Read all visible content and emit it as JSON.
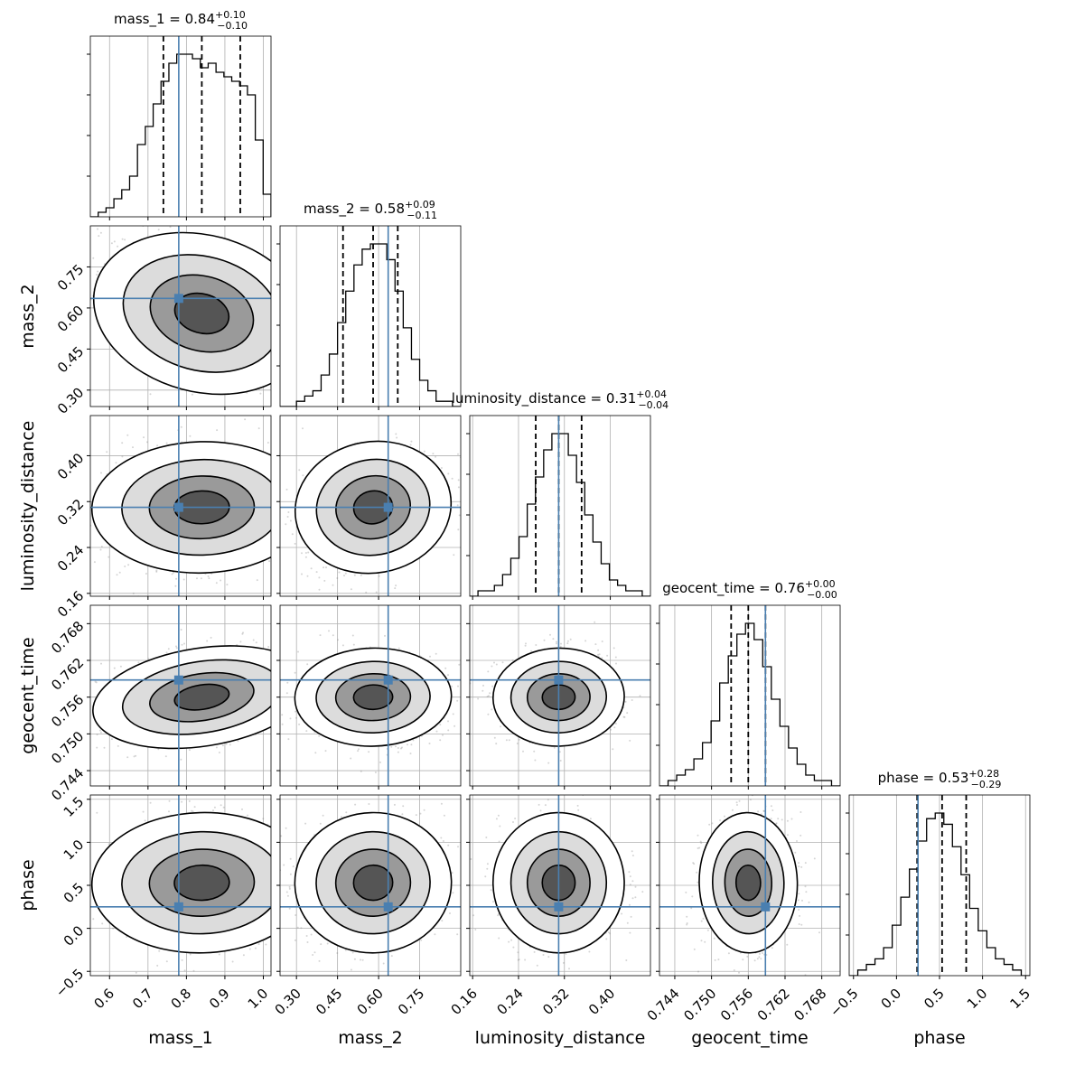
{
  "chart_data": {
    "type": "corner",
    "parameters": [
      {
        "name": "mass_1",
        "range": [
          0.55,
          1.02
        ],
        "ticks": [
          0.6,
          0.7,
          0.8,
          0.9,
          1.0
        ],
        "tick_labels": [
          "0.6",
          "0.7",
          "0.8",
          "0.9",
          "1.0"
        ],
        "truth": 0.78,
        "quantiles": [
          0.74,
          0.84,
          0.94
        ],
        "title": {
          "prefix": "mass_1 = 0.84",
          "sup": "+0.10",
          "sub": "−0.10"
        },
        "hist": [
          0,
          1,
          2,
          4,
          6,
          9,
          16,
          20,
          25,
          30,
          34,
          36,
          36,
          35,
          33,
          34,
          32,
          31,
          30,
          29,
          27,
          17,
          5
        ]
      },
      {
        "name": "mass_2",
        "range": [
          0.24,
          0.9
        ],
        "ticks": [
          0.3,
          0.45,
          0.6,
          0.75
        ],
        "tick_labels": [
          "0.30",
          "0.45",
          "0.60",
          "0.75"
        ],
        "truth": 0.635,
        "quantiles": [
          0.47,
          0.58,
          0.67
        ],
        "title": {
          "prefix": "mass_2 = 0.58",
          "sup": "+0.09",
          "sub": "−0.11"
        },
        "hist": [
          0,
          0,
          1,
          2,
          3,
          6,
          10,
          16,
          22,
          27,
          30,
          31,
          31,
          28,
          22,
          15,
          9,
          5,
          3,
          1,
          1,
          0
        ]
      },
      {
        "name": "luminosity_distance",
        "range": [
          0.155,
          0.47
        ],
        "ticks": [
          0.16,
          0.24,
          0.32,
          0.4
        ],
        "tick_labels": [
          "0.16",
          "0.24",
          "0.32",
          "0.40"
        ],
        "truth": 0.31,
        "quantiles": [
          0.27,
          0.31,
          0.35
        ],
        "title": {
          "prefix": "luminosity_distance = 0.31",
          "sup": "+0.04",
          "sub": "−0.04"
        },
        "hist": [
          0,
          1,
          1,
          2,
          4,
          7,
          11,
          17,
          22,
          27,
          30,
          30,
          26,
          21,
          15,
          10,
          6,
          3,
          2,
          1,
          1,
          0
        ]
      },
      {
        "name": "geocent_time",
        "range": [
          0.7415,
          0.771
        ],
        "ticks": [
          0.744,
          0.75,
          0.756,
          0.762,
          0.768
        ],
        "tick_labels": [
          "0.744",
          "0.750",
          "0.756",
          "0.762",
          "0.768"
        ],
        "truth": 0.7588,
        "quantiles": [
          0.7532,
          0.756,
          0.7588
        ],
        "title": {
          "prefix": "geocent_time = 0.76",
          "sup": "+0.00",
          "sub": "−0.00"
        },
        "hist": [
          0,
          1,
          2,
          3,
          5,
          8,
          12,
          19,
          24,
          28,
          30,
          27,
          22,
          16,
          11,
          7,
          4,
          2,
          1,
          1,
          0
        ]
      },
      {
        "name": "phase",
        "range": [
          -0.55,
          1.55
        ],
        "ticks": [
          -0.5,
          0.0,
          0.5,
          1.0,
          1.5
        ],
        "tick_labels": [
          "−0.5",
          "0.0",
          "0.5",
          "1.0",
          "1.5"
        ],
        "truth": 0.25,
        "quantiles": [
          0.24,
          0.53,
          0.81
        ],
        "title": {
          "prefix": "phase = 0.53",
          "sup": "+0.28",
          "sub": "−0.29"
        },
        "hist": [
          0,
          1,
          2,
          3,
          5,
          9,
          14,
          19,
          24,
          28,
          29,
          27,
          23,
          18,
          12,
          8,
          5,
          3,
          2,
          1,
          0
        ]
      }
    ]
  }
}
